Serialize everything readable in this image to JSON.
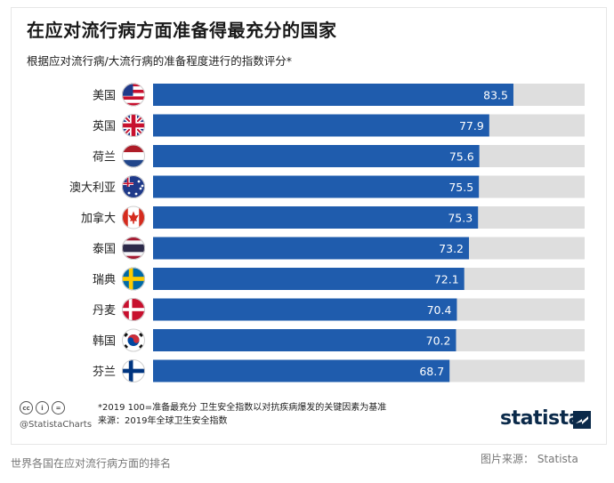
{
  "chart_data": {
    "type": "bar",
    "orientation": "horizontal",
    "title": "在应对流行病方面准备得最充分的国家",
    "subtitle": "根据应对流行病/大流行病的准备程度进行的指数评分*",
    "categories": [
      "美国",
      "英国",
      "荷兰",
      "澳大利亚",
      "加拿大",
      "泰国",
      "瑞典",
      "丹麦",
      "韩国",
      "芬兰"
    ],
    "values": [
      83.5,
      77.9,
      75.6,
      75.5,
      75.3,
      73.2,
      72.1,
      70.4,
      70.2,
      68.7
    ],
    "xlim": [
      0,
      100
    ],
    "flags": [
      "us",
      "uk",
      "nl",
      "au",
      "ca",
      "th",
      "se",
      "dk",
      "kr",
      "fi"
    ],
    "colors": {
      "bar": "#1f5cad",
      "track": "#dedede",
      "label": "#ffffff"
    }
  },
  "footer": {
    "note_line1": "*2019 100=准备最充分 卫生安全指数以对抗疾病爆发的关键因素为基准",
    "note_line2": "来源：2019年全球卫生安全指数",
    "handle": "@StatistaCharts",
    "cc_icons": [
      "cc",
      "by",
      "nd"
    ],
    "logo": "statista"
  },
  "caption": "世界各国在应对流行病方面的排名",
  "credit": "图片来源： Statista"
}
